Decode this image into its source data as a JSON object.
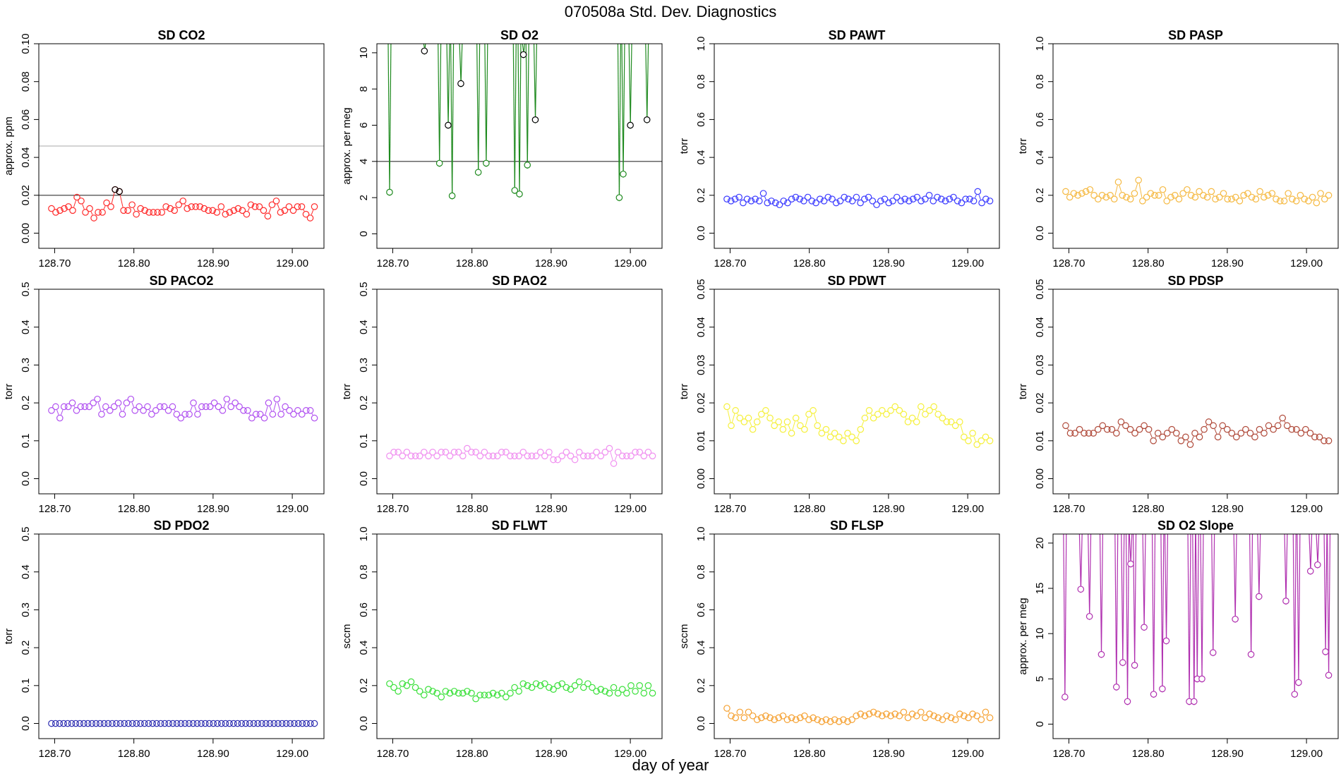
{
  "figure": {
    "title": "070508a   Std. Dev. Diagnostics",
    "xlabel": "day of year"
  },
  "chart_data": [
    {
      "name": "sd-co2",
      "title": "SD CO2",
      "ylabel": "approx. ppm",
      "type": "scatter-line",
      "color": "#ff2b2b",
      "xlim": [
        128.68,
        129.04
      ],
      "ylim": [
        -0.008,
        0.1
      ],
      "yticks": [
        "0.00",
        "0.02",
        "0.04",
        "0.06",
        "0.08",
        "0.10"
      ],
      "xticks": [
        "128.70",
        "128.80",
        "128.90",
        "129.00"
      ],
      "hlines": [
        {
          "y": 0.02,
          "color": "#333333"
        },
        {
          "y": 0.046,
          "color": "#bbbbbb"
        }
      ],
      "values": [
        0.013,
        0.011,
        0.012,
        0.013,
        0.014,
        0.012,
        0.019,
        0.017,
        0.011,
        0.013,
        0.008,
        0.011,
        0.011,
        0.016,
        0.014,
        0.023,
        0.022,
        0.012,
        0.012,
        0.015,
        0.01,
        0.013,
        0.012,
        0.011,
        0.011,
        0.011,
        0.011,
        0.014,
        0.013,
        0.012,
        0.015,
        0.017,
        0.013,
        0.014,
        0.014,
        0.014,
        0.013,
        0.012,
        0.012,
        0.011,
        0.014,
        0.01,
        0.011,
        0.012,
        0.013,
        0.012,
        0.01,
        0.015,
        0.014,
        0.014,
        0.012,
        0.009,
        0.015,
        0.017,
        0.011,
        0.012,
        0.014,
        0.012,
        0.014,
        0.014,
        0.01,
        0.008,
        0.014
      ],
      "highlight": [
        {
          "index": 15,
          "value": 0.023,
          "color": "#000000"
        },
        {
          "index": 16,
          "value": 0.022,
          "color": "#000000"
        }
      ]
    },
    {
      "name": "sd-o2",
      "title": "SD O2",
      "ylabel": "approx. per meg",
      "type": "spikes",
      "color": "#1e8a1e",
      "xlim": [
        128.68,
        129.04
      ],
      "ylim": [
        -0.8,
        10.5
      ],
      "yticks": [
        "0",
        "2",
        "4",
        "6",
        "8",
        "10"
      ],
      "xticks": [
        "128.70",
        "128.80",
        "128.90",
        "129.00"
      ],
      "hlines": [
        {
          "y": 4,
          "color": "#333333"
        }
      ],
      "points": [
        {
          "x": 128.696,
          "y": 2.3,
          "c": "g"
        },
        {
          "x": 128.74,
          "y": 10.1,
          "c": "k"
        },
        {
          "x": 128.759,
          "y": 3.9,
          "c": "g"
        },
        {
          "x": 128.77,
          "y": 6.0,
          "c": "k"
        },
        {
          "x": 128.775,
          "y": 2.1,
          "c": "g"
        },
        {
          "x": 128.786,
          "y": 8.3,
          "c": "k"
        },
        {
          "x": 128.808,
          "y": 3.4,
          "c": "g"
        },
        {
          "x": 128.818,
          "y": 3.9,
          "c": "g"
        },
        {
          "x": 128.854,
          "y": 2.4,
          "c": "g"
        },
        {
          "x": 128.86,
          "y": 2.2,
          "c": "g"
        },
        {
          "x": 128.865,
          "y": 9.9,
          "c": "k"
        },
        {
          "x": 128.87,
          "y": 3.8,
          "c": "g"
        },
        {
          "x": 128.88,
          "y": 6.3,
          "c": "k"
        },
        {
          "x": 128.986,
          "y": 2.0,
          "c": "g"
        },
        {
          "x": 128.991,
          "y": 3.3,
          "c": "g"
        },
        {
          "x": 129.0,
          "y": 6.0,
          "c": "k"
        },
        {
          "x": 129.021,
          "y": 6.3,
          "c": "k"
        }
      ]
    },
    {
      "name": "sd-pawt",
      "title": "SD PAWT",
      "ylabel": "torr",
      "type": "scatter-line",
      "color": "#3a3aff",
      "xlim": [
        128.68,
        129.04
      ],
      "ylim": [
        -0.08,
        1.0
      ],
      "yticks": [
        "0.0",
        "0.2",
        "0.4",
        "0.6",
        "0.8",
        "1.0"
      ],
      "xticks": [
        "128.70",
        "128.80",
        "128.90",
        "129.00"
      ],
      "values": [
        0.18,
        0.17,
        0.18,
        0.19,
        0.16,
        0.18,
        0.17,
        0.18,
        0.17,
        0.21,
        0.16,
        0.17,
        0.16,
        0.15,
        0.17,
        0.16,
        0.18,
        0.19,
        0.18,
        0.17,
        0.19,
        0.17,
        0.16,
        0.18,
        0.17,
        0.19,
        0.18,
        0.16,
        0.17,
        0.19,
        0.18,
        0.17,
        0.19,
        0.16,
        0.18,
        0.19,
        0.17,
        0.15,
        0.17,
        0.18,
        0.16,
        0.17,
        0.19,
        0.17,
        0.18,
        0.17,
        0.18,
        0.19,
        0.17,
        0.18,
        0.2,
        0.17,
        0.19,
        0.18,
        0.17,
        0.18,
        0.19,
        0.17,
        0.16,
        0.18,
        0.18,
        0.17,
        0.22,
        0.16,
        0.18,
        0.17
      ]
    },
    {
      "name": "sd-pasp",
      "title": "SD PASP",
      "ylabel": "torr",
      "type": "scatter-line",
      "color": "#f5b942",
      "xlim": [
        128.68,
        129.04
      ],
      "ylim": [
        -0.08,
        1.0
      ],
      "yticks": [
        "0.0",
        "0.2",
        "0.4",
        "0.6",
        "0.8",
        "1.0"
      ],
      "xticks": [
        "128.70",
        "128.80",
        "128.90",
        "129.00"
      ],
      "values": [
        0.22,
        0.19,
        0.21,
        0.2,
        0.21,
        0.22,
        0.23,
        0.2,
        0.18,
        0.2,
        0.19,
        0.2,
        0.18,
        0.27,
        0.2,
        0.19,
        0.18,
        0.21,
        0.28,
        0.17,
        0.19,
        0.21,
        0.2,
        0.2,
        0.23,
        0.17,
        0.19,
        0.2,
        0.18,
        0.21,
        0.23,
        0.2,
        0.19,
        0.22,
        0.2,
        0.19,
        0.22,
        0.18,
        0.19,
        0.21,
        0.18,
        0.18,
        0.19,
        0.17,
        0.2,
        0.21,
        0.19,
        0.18,
        0.22,
        0.19,
        0.2,
        0.21,
        0.18,
        0.17,
        0.17,
        0.21,
        0.18,
        0.17,
        0.2,
        0.18,
        0.17,
        0.19,
        0.16,
        0.21,
        0.18,
        0.2
      ]
    },
    {
      "name": "sd-paco2",
      "title": "SD PACO2",
      "ylabel": "torr",
      "type": "scatter-line",
      "color": "#b050f0",
      "xlim": [
        128.68,
        129.04
      ],
      "ylim": [
        -0.04,
        0.5
      ],
      "yticks": [
        "0.0",
        "0.1",
        "0.2",
        "0.3",
        "0.4",
        "0.5"
      ],
      "xticks": [
        "128.70",
        "128.80",
        "128.90",
        "129.00"
      ],
      "values": [
        0.18,
        0.19,
        0.16,
        0.19,
        0.19,
        0.2,
        0.18,
        0.19,
        0.19,
        0.19,
        0.2,
        0.21,
        0.17,
        0.19,
        0.18,
        0.19,
        0.2,
        0.17,
        0.2,
        0.21,
        0.18,
        0.19,
        0.18,
        0.19,
        0.17,
        0.18,
        0.19,
        0.19,
        0.18,
        0.19,
        0.17,
        0.16,
        0.17,
        0.17,
        0.2,
        0.17,
        0.19,
        0.19,
        0.19,
        0.2,
        0.19,
        0.18,
        0.21,
        0.19,
        0.2,
        0.19,
        0.18,
        0.18,
        0.16,
        0.17,
        0.17,
        0.16,
        0.2,
        0.17,
        0.21,
        0.17,
        0.19,
        0.18,
        0.17,
        0.18,
        0.17,
        0.18,
        0.18,
        0.16
      ]
    },
    {
      "name": "sd-pao2",
      "title": "SD PAO2",
      "ylabel": "torr",
      "type": "scatter-line",
      "color": "#f090f0",
      "xlim": [
        128.68,
        129.04
      ],
      "ylim": [
        -0.04,
        0.5
      ],
      "yticks": [
        "0.0",
        "0.1",
        "0.2",
        "0.3",
        "0.4",
        "0.5"
      ],
      "xticks": [
        "128.70",
        "128.80",
        "128.90",
        "129.00"
      ],
      "values": [
        0.06,
        0.07,
        0.07,
        0.06,
        0.07,
        0.06,
        0.06,
        0.06,
        0.07,
        0.06,
        0.07,
        0.06,
        0.07,
        0.07,
        0.06,
        0.07,
        0.07,
        0.06,
        0.08,
        0.07,
        0.07,
        0.06,
        0.07,
        0.06,
        0.06,
        0.06,
        0.07,
        0.07,
        0.06,
        0.06,
        0.06,
        0.07,
        0.06,
        0.06,
        0.06,
        0.07,
        0.06,
        0.07,
        0.05,
        0.05,
        0.06,
        0.07,
        0.06,
        0.05,
        0.07,
        0.06,
        0.06,
        0.06,
        0.07,
        0.06,
        0.07,
        0.08,
        0.04,
        0.07,
        0.06,
        0.06,
        0.06,
        0.07,
        0.07,
        0.06,
        0.07,
        0.06
      ]
    },
    {
      "name": "sd-pdwt",
      "title": "SD PDWT",
      "ylabel": "torr",
      "type": "scatter-line",
      "color": "#f5f03a",
      "xlim": [
        128.68,
        129.04
      ],
      "ylim": [
        -0.004,
        0.05
      ],
      "yticks": [
        "0.00",
        "0.01",
        "0.02",
        "0.03",
        "0.04",
        "0.05"
      ],
      "xticks": [
        "128.70",
        "128.80",
        "128.90",
        "129.00"
      ],
      "values": [
        0.019,
        0.014,
        0.018,
        0.016,
        0.015,
        0.016,
        0.013,
        0.015,
        0.017,
        0.018,
        0.016,
        0.014,
        0.015,
        0.013,
        0.015,
        0.012,
        0.016,
        0.014,
        0.013,
        0.017,
        0.018,
        0.014,
        0.012,
        0.013,
        0.011,
        0.012,
        0.011,
        0.01,
        0.012,
        0.011,
        0.01,
        0.013,
        0.016,
        0.018,
        0.016,
        0.017,
        0.018,
        0.017,
        0.018,
        0.019,
        0.018,
        0.017,
        0.015,
        0.016,
        0.015,
        0.019,
        0.017,
        0.018,
        0.019,
        0.017,
        0.016,
        0.015,
        0.015,
        0.014,
        0.015,
        0.011,
        0.01,
        0.012,
        0.009,
        0.01,
        0.011,
        0.01
      ]
    },
    {
      "name": "sd-pdsp",
      "title": "SD PDSP",
      "ylabel": "torr",
      "type": "scatter-line",
      "color": "#b04a3a",
      "xlim": [
        128.68,
        129.04
      ],
      "ylim": [
        -0.004,
        0.05
      ],
      "yticks": [
        "0.00",
        "0.01",
        "0.02",
        "0.03",
        "0.04",
        "0.05"
      ],
      "xticks": [
        "128.70",
        "128.80",
        "128.90",
        "129.00"
      ],
      "values": [
        0.014,
        0.012,
        0.012,
        0.013,
        0.012,
        0.012,
        0.012,
        0.013,
        0.014,
        0.013,
        0.013,
        0.012,
        0.015,
        0.014,
        0.013,
        0.012,
        0.013,
        0.014,
        0.013,
        0.01,
        0.012,
        0.011,
        0.012,
        0.013,
        0.012,
        0.01,
        0.011,
        0.009,
        0.012,
        0.011,
        0.013,
        0.015,
        0.014,
        0.011,
        0.014,
        0.013,
        0.012,
        0.011,
        0.012,
        0.013,
        0.012,
        0.011,
        0.013,
        0.012,
        0.014,
        0.013,
        0.014,
        0.016,
        0.014,
        0.013,
        0.013,
        0.012,
        0.013,
        0.012,
        0.011,
        0.011,
        0.01,
        0.01
      ]
    },
    {
      "name": "sd-pdo2",
      "title": "SD PDO2",
      "ylabel": "torr",
      "type": "scatter-line",
      "color": "#2a2ab0",
      "xlim": [
        128.68,
        129.04
      ],
      "ylim": [
        -0.04,
        0.5
      ],
      "yticks": [
        "0.0",
        "0.1",
        "0.2",
        "0.3",
        "0.4",
        "0.5"
      ],
      "xticks": [
        "128.70",
        "128.80",
        "128.90",
        "129.00"
      ],
      "values": [
        0.0,
        0.0,
        0.0,
        0.0,
        0.0,
        0.0,
        0.0,
        0.0,
        0.0,
        0.0,
        0.0,
        0.0,
        0.0,
        0.0,
        0.0,
        0.0,
        0.0,
        0.0,
        0.0,
        0.0,
        0.0,
        0.0,
        0.0,
        0.0,
        0.0,
        0.0,
        0.0,
        0.0,
        0.0,
        0.0,
        0.0,
        0.0,
        0.0,
        0.0,
        0.0,
        0.0,
        0.0,
        0.0,
        0.0,
        0.0,
        0.0,
        0.0,
        0.0,
        0.0,
        0.0,
        0.0,
        0.0,
        0.0,
        0.0,
        0.0,
        0.0,
        0.0,
        0.0,
        0.0,
        0.0,
        0.0,
        0.0,
        0.0,
        0.0,
        0.0,
        0.0,
        0.0,
        0.0,
        0.0,
        0.0,
        0.0
      ]
    },
    {
      "name": "sd-flwt",
      "title": "SD FLWT",
      "ylabel": "sccm",
      "type": "scatter-line",
      "color": "#3ae03a",
      "xlim": [
        128.68,
        129.04
      ],
      "ylim": [
        -0.08,
        1.0
      ],
      "yticks": [
        "0.0",
        "0.2",
        "0.4",
        "0.6",
        "0.8",
        "1.0"
      ],
      "xticks": [
        "128.70",
        "128.80",
        "128.90",
        "129.00"
      ],
      "values": [
        0.21,
        0.19,
        0.17,
        0.21,
        0.2,
        0.22,
        0.19,
        0.17,
        0.15,
        0.18,
        0.17,
        0.16,
        0.14,
        0.17,
        0.16,
        0.17,
        0.16,
        0.16,
        0.17,
        0.16,
        0.13,
        0.15,
        0.15,
        0.15,
        0.16,
        0.15,
        0.16,
        0.14,
        0.16,
        0.19,
        0.17,
        0.21,
        0.2,
        0.19,
        0.21,
        0.2,
        0.21,
        0.19,
        0.18,
        0.2,
        0.21,
        0.19,
        0.18,
        0.2,
        0.22,
        0.19,
        0.21,
        0.19,
        0.17,
        0.18,
        0.17,
        0.16,
        0.19,
        0.16,
        0.18,
        0.16,
        0.2,
        0.17,
        0.2,
        0.16,
        0.2,
        0.16
      ]
    },
    {
      "name": "sd-flsp",
      "title": "SD FLSP",
      "ylabel": "sccm",
      "type": "scatter-line",
      "color": "#f5a030",
      "xlim": [
        128.68,
        129.04
      ],
      "ylim": [
        -0.08,
        1.0
      ],
      "yticks": [
        "0.0",
        "0.2",
        "0.4",
        "0.6",
        "0.8",
        "1.0"
      ],
      "xticks": [
        "128.70",
        "128.80",
        "128.90",
        "129.00"
      ],
      "values": [
        0.08,
        0.04,
        0.03,
        0.06,
        0.03,
        0.06,
        0.04,
        0.02,
        0.03,
        0.04,
        0.03,
        0.02,
        0.03,
        0.04,
        0.02,
        0.03,
        0.02,
        0.03,
        0.04,
        0.02,
        0.03,
        0.02,
        0.01,
        0.02,
        0.01,
        0.02,
        0.01,
        0.02,
        0.01,
        0.02,
        0.04,
        0.05,
        0.04,
        0.05,
        0.06,
        0.05,
        0.04,
        0.05,
        0.04,
        0.05,
        0.04,
        0.06,
        0.03,
        0.05,
        0.04,
        0.06,
        0.03,
        0.05,
        0.04,
        0.03,
        0.02,
        0.04,
        0.03,
        0.02,
        0.05,
        0.04,
        0.03,
        0.05,
        0.04,
        0.02,
        0.06,
        0.03
      ]
    },
    {
      "name": "sd-o2-slope",
      "title": "SD O2 Slope",
      "ylabel": "approx. per meg",
      "type": "spikes",
      "color": "#b030b0",
      "xlim": [
        128.68,
        129.04
      ],
      "ylim": [
        -1.6,
        21
      ],
      "yticks": [
        "0",
        "5",
        "10",
        "15",
        "20"
      ],
      "xticks": [
        "128.70",
        "128.80",
        "128.90",
        "129.00"
      ],
      "hlines": [],
      "points": [
        {
          "x": 128.695,
          "y": 3.0
        },
        {
          "x": 128.715,
          "y": 14.9
        },
        {
          "x": 128.726,
          "y": 11.9
        },
        {
          "x": 128.741,
          "y": 7.7
        },
        {
          "x": 128.76,
          "y": 4.1
        },
        {
          "x": 128.768,
          "y": 6.8
        },
        {
          "x": 128.774,
          "y": 2.5
        },
        {
          "x": 128.778,
          "y": 17.7
        },
        {
          "x": 128.783,
          "y": 6.5
        },
        {
          "x": 128.795,
          "y": 10.7
        },
        {
          "x": 128.807,
          "y": 3.3
        },
        {
          "x": 128.818,
          "y": 3.9
        },
        {
          "x": 128.823,
          "y": 9.2
        },
        {
          "x": 128.852,
          "y": 2.5
        },
        {
          "x": 128.858,
          "y": 2.5
        },
        {
          "x": 128.862,
          "y": 5.0
        },
        {
          "x": 128.868,
          "y": 5.0
        },
        {
          "x": 128.882,
          "y": 7.9
        },
        {
          "x": 128.91,
          "y": 11.6
        },
        {
          "x": 128.93,
          "y": 7.7
        },
        {
          "x": 128.94,
          "y": 14.1
        },
        {
          "x": 128.974,
          "y": 13.6
        },
        {
          "x": 128.985,
          "y": 3.3
        },
        {
          "x": 128.99,
          "y": 4.6
        },
        {
          "x": 129.005,
          "y": 16.9
        },
        {
          "x": 129.014,
          "y": 17.6
        },
        {
          "x": 129.024,
          "y": 8.0
        },
        {
          "x": 129.028,
          "y": 5.4
        }
      ]
    }
  ]
}
